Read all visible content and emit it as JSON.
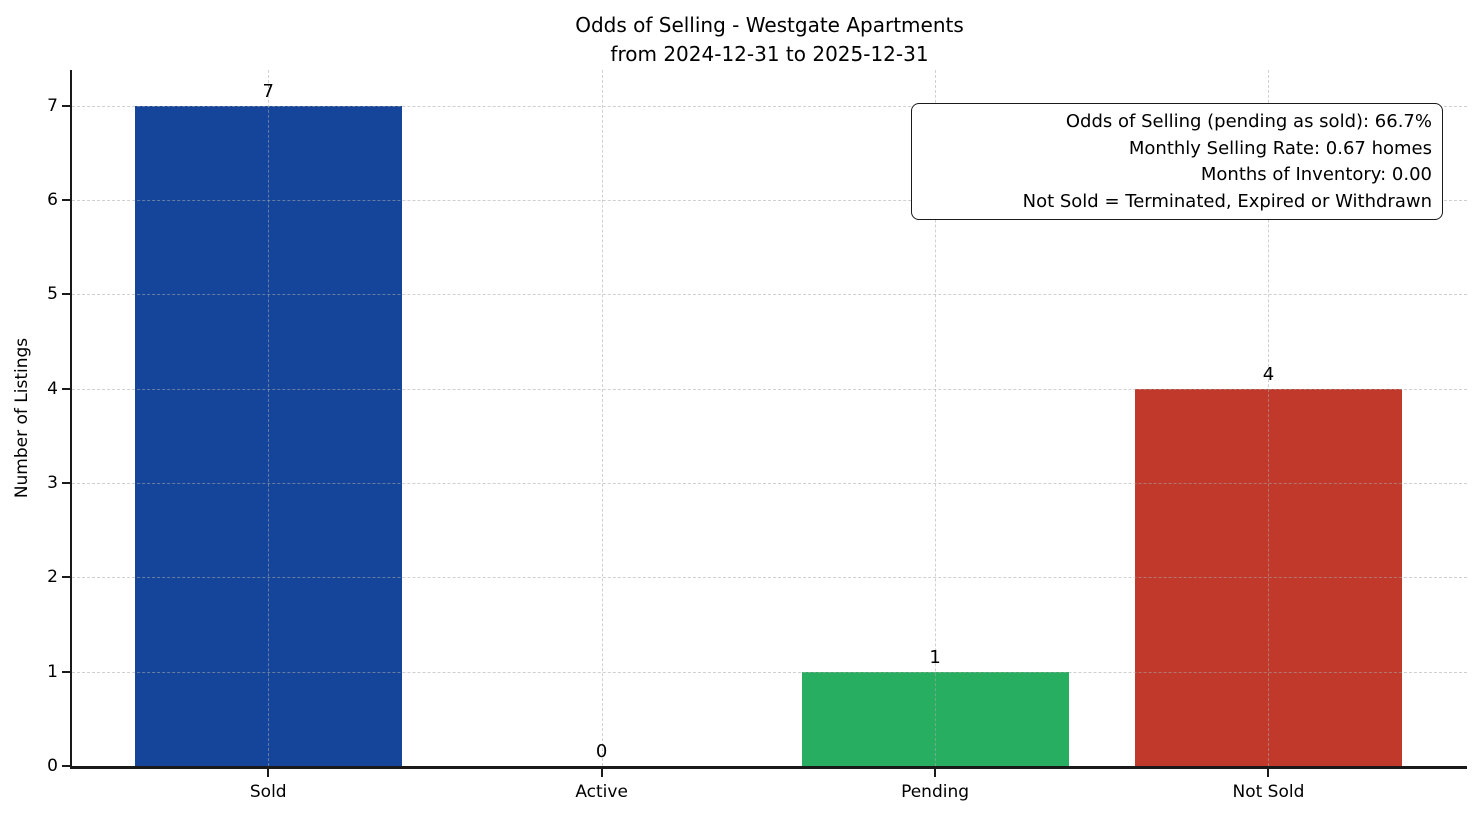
{
  "title": {
    "line1": "Odds of Selling - Westgate Apartments",
    "line2": "from 2024-12-31 to 2025-12-31"
  },
  "annotation": {
    "lines": [
      "Odds of Selling (pending as sold): 66.7%",
      "Monthly Selling Rate: 0.67 homes",
      "Months of Inventory: 0.00",
      "Not Sold = Terminated, Expired or Withdrawn"
    ]
  },
  "chart_data": {
    "type": "bar",
    "title": "Odds of Selling - Westgate Apartments\nfrom 2024-12-31 to 2025-12-31",
    "categories": [
      "Sold",
      "Active",
      "Pending",
      "Not Sold"
    ],
    "values": [
      7,
      0,
      1,
      4
    ],
    "bar_value_labels": [
      "7",
      "0",
      "1",
      "4"
    ],
    "colors": [
      "#15459b",
      "#e67e22",
      "#27ae60",
      "#c0392b"
    ],
    "xlabel": "",
    "ylabel": "Number of Listings",
    "ylim": [
      0,
      7.38
    ],
    "yticks": [
      0,
      1,
      2,
      3,
      4,
      5,
      6,
      7
    ],
    "grid": "dashed, both axes, drawn above bars",
    "legend": "none",
    "stats": {
      "odds_of_selling_pending_as_sold_pct": 66.7,
      "monthly_selling_rate_homes": 0.67,
      "months_of_inventory": 0.0,
      "not_sold_definition": "Terminated, Expired or Withdrawn"
    }
  }
}
